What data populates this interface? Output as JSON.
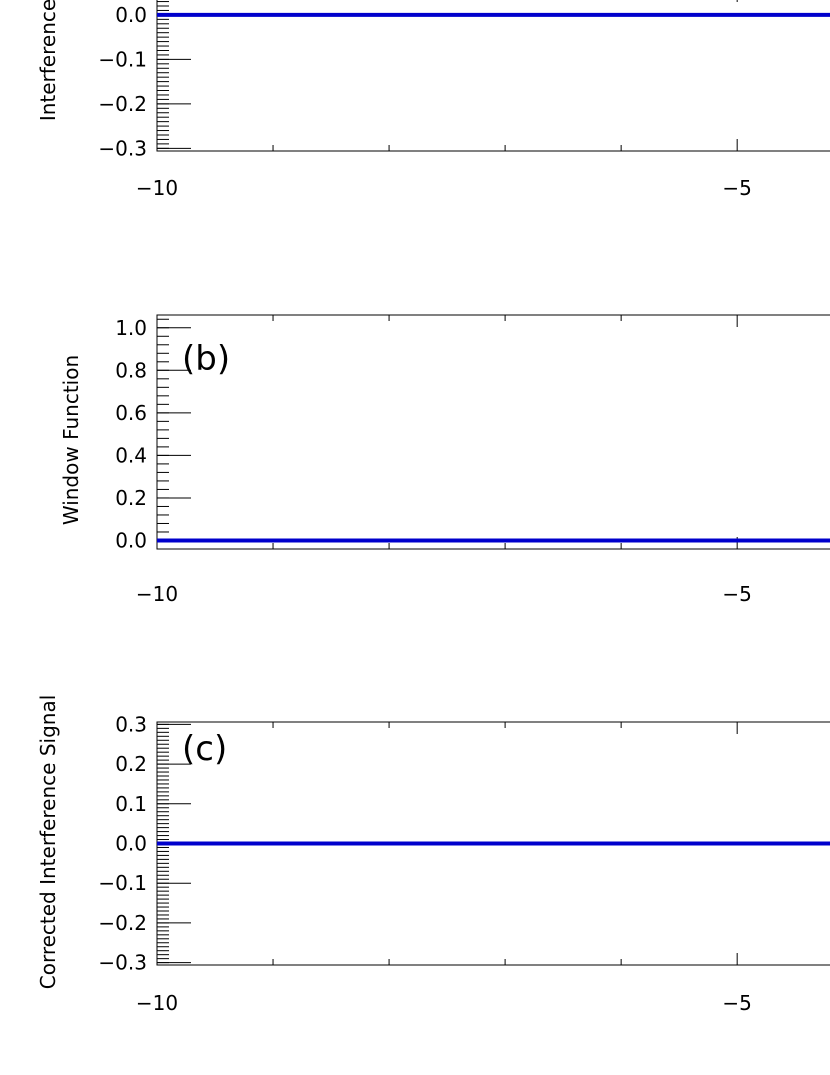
{
  "chart_data": [
    {
      "type": "line",
      "panel_label": "",
      "ylabel": "Interference",
      "x_ticks": [
        -10,
        -5
      ],
      "x_tick_labels": [
        "−10",
        "−5"
      ],
      "y_ticks": [
        0.0,
        -0.1,
        -0.2,
        -0.3
      ],
      "y_tick_labels": [
        "0.0",
        "−0.1",
        "−0.2",
        "−0.3"
      ],
      "series": [
        {
          "color": "#0000cc",
          "x": [
            -10,
            -9,
            -8,
            -7,
            -6,
            -5,
            -4.2
          ],
          "y": [
            0,
            0,
            0,
            0,
            0,
            0,
            0
          ]
        }
      ]
    },
    {
      "type": "line",
      "panel_label": "(b)",
      "ylabel": "Window Function",
      "x_ticks": [
        -10,
        -5
      ],
      "x_tick_labels": [
        "−10",
        "−5"
      ],
      "y_ticks": [
        1.0,
        0.8,
        0.6,
        0.4,
        0.2,
        0.0
      ],
      "y_tick_labels": [
        "1.0",
        "0.8",
        "0.6",
        "0.4",
        "0.2",
        "0.0"
      ],
      "ylim": [
        0.0,
        1.0
      ],
      "series": [
        {
          "color": "#0000cc",
          "x": [
            -10,
            -9,
            -8,
            -7,
            -6,
            -5,
            -4.2
          ],
          "y": [
            0,
            0,
            0,
            0,
            0,
            0,
            0
          ]
        }
      ]
    },
    {
      "type": "line",
      "panel_label": "(c)",
      "ylabel": "Corrected Interference Signal",
      "x_ticks": [
        -10,
        -5
      ],
      "x_tick_labels": [
        "−10",
        "−5"
      ],
      "y_ticks": [
        0.3,
        0.2,
        0.1,
        0.0,
        -0.1,
        -0.2,
        -0.3
      ],
      "y_tick_labels": [
        "0.3",
        "0.2",
        "0.1",
        "0.0",
        "−0.1",
        "−0.2",
        "−0.3"
      ],
      "ylim": [
        -0.3,
        0.3
      ],
      "series": [
        {
          "color": "#0000cc",
          "x": [
            -10,
            -9,
            -8,
            -7,
            -6,
            -5,
            -4.2
          ],
          "y": [
            0,
            0,
            0,
            0,
            0,
            0,
            0
          ]
        }
      ]
    }
  ]
}
